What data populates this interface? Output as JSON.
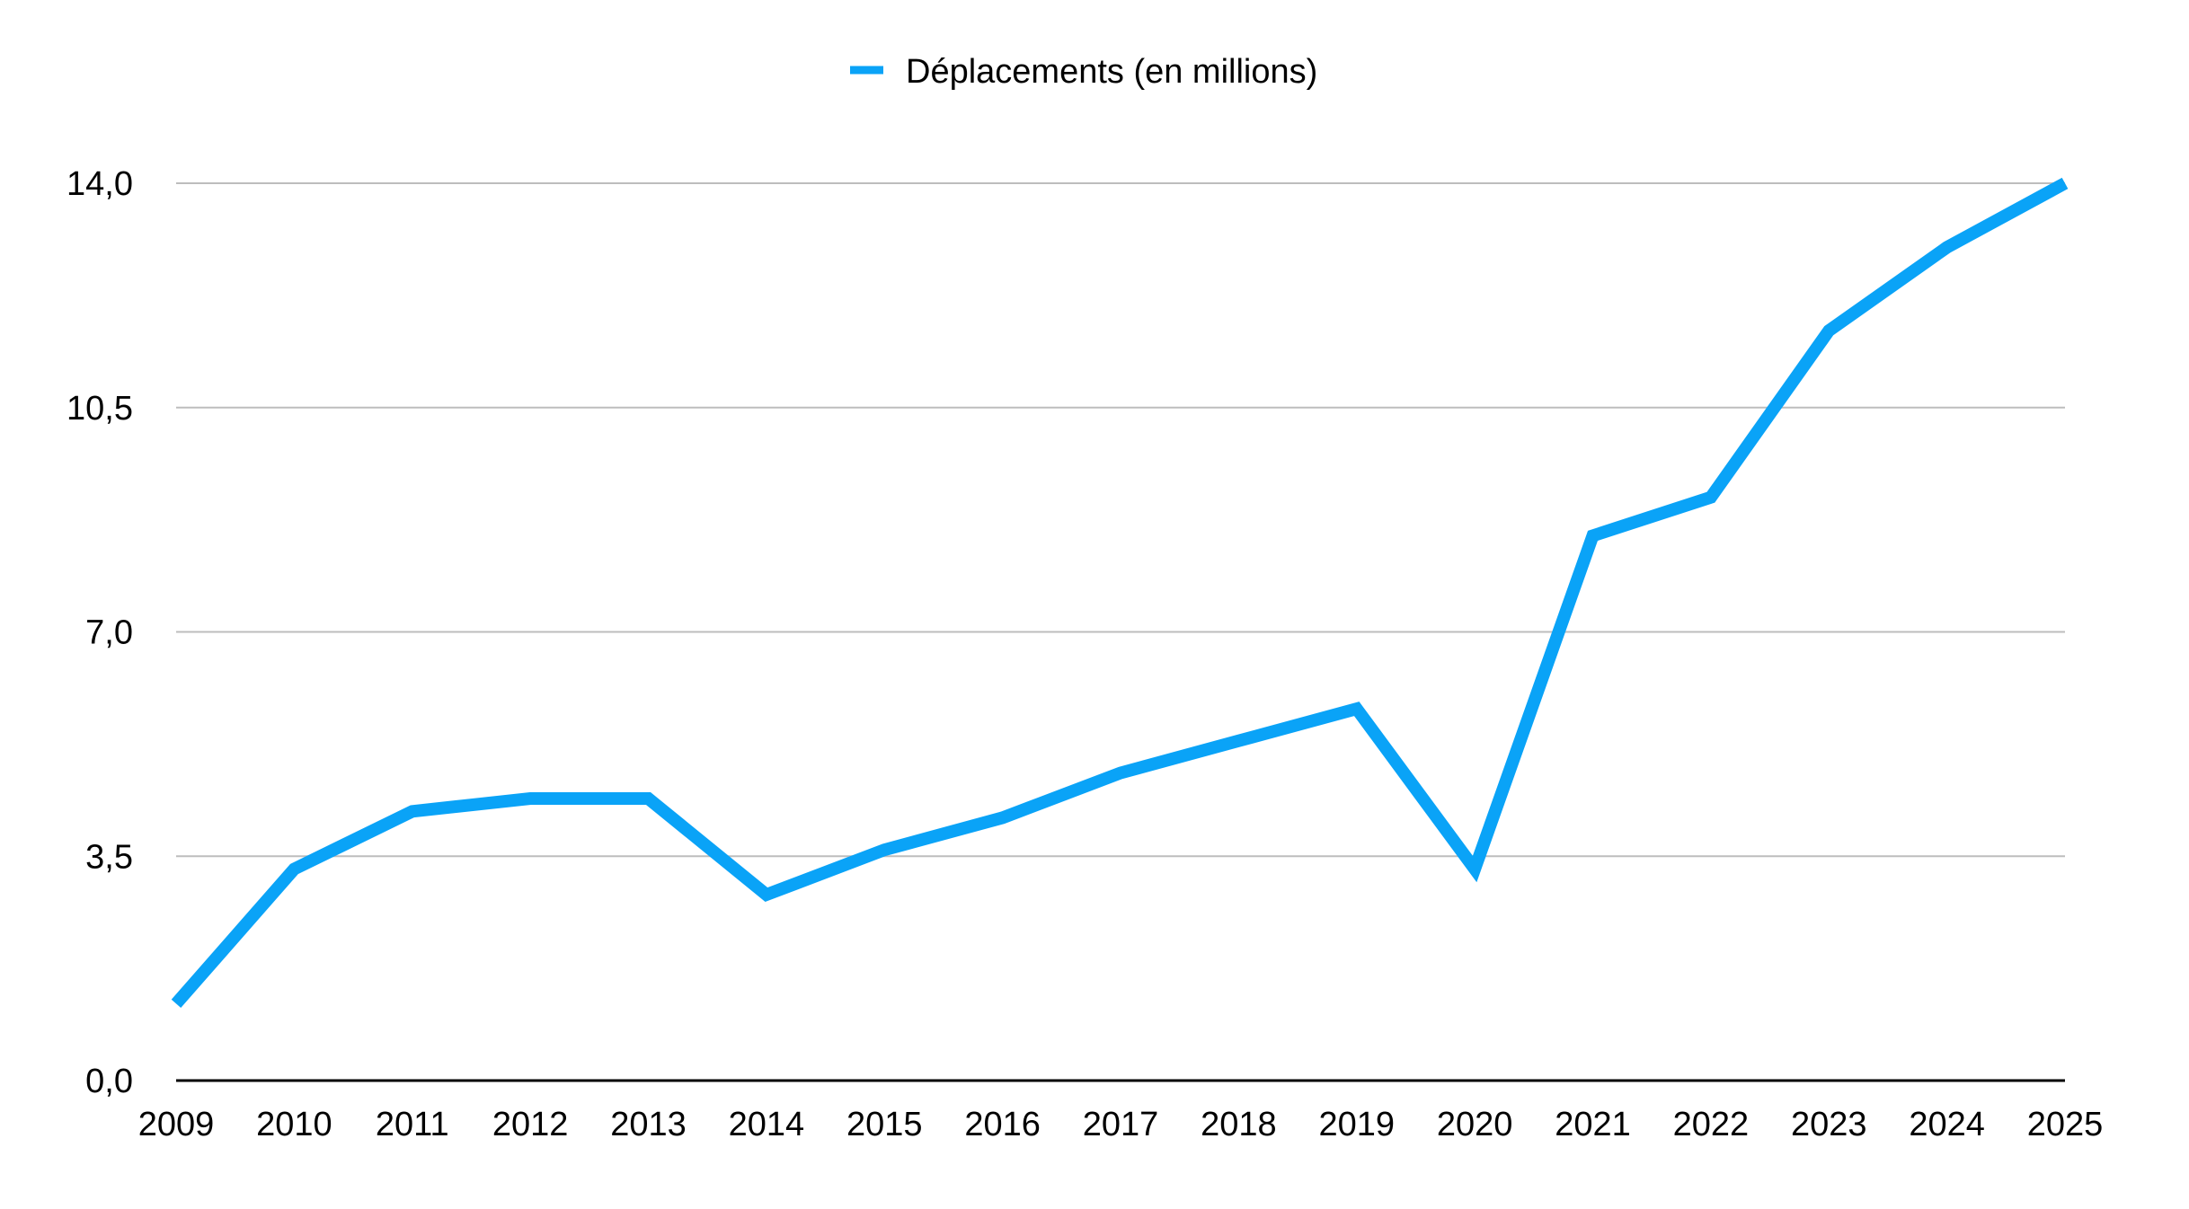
{
  "chart_data": {
    "type": "line",
    "title": "",
    "xlabel": "",
    "ylabel": "",
    "categories": [
      "2009",
      "2010",
      "2011",
      "2012",
      "2013",
      "2014",
      "2015",
      "2016",
      "2017",
      "2018",
      "2019",
      "2020",
      "2021",
      "2022",
      "2023",
      "2024",
      "2025"
    ],
    "series": [
      {
        "name": "Déplacements (en millions)",
        "color": "#0aa3f7",
        "values": [
          1.2,
          3.3,
          4.2,
          4.4,
          4.4,
          2.9,
          3.6,
          4.1,
          4.8,
          5.3,
          5.8,
          3.3,
          8.5,
          9.1,
          11.7,
          13.0,
          14.0
        ]
      }
    ],
    "ylim": [
      0,
      14
    ],
    "yticks": [
      0,
      3.5,
      7,
      10.5,
      14
    ],
    "ytick_labels": [
      "0,0",
      "3,5",
      "7,0",
      "10,5",
      "14,0"
    ],
    "grid": true,
    "legend_position": "top-center"
  }
}
